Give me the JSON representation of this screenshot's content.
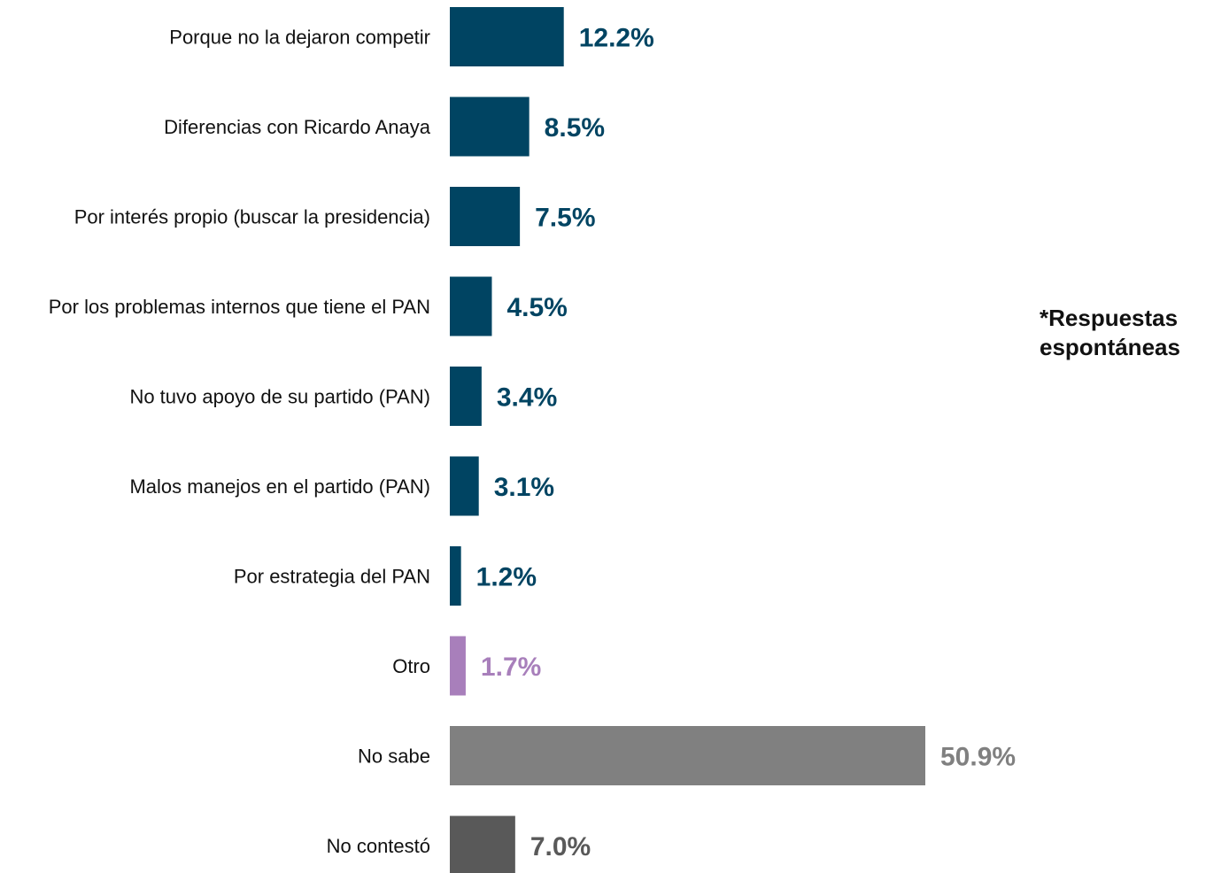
{
  "chart_data": {
    "type": "bar",
    "orientation": "horizontal",
    "categories": [
      "Porque no la dejaron competir",
      "Diferencias con Ricardo Anaya",
      "Por interés propio (buscar la presidencia)",
      "Por los problemas internos que tiene el PAN",
      "No tuvo apoyo de su partido (PAN)",
      "Malos manejos en el partido (PAN)",
      "Por estrategia del PAN",
      "Otro",
      "No sabe",
      "No contestó"
    ],
    "values": [
      12.2,
      8.5,
      7.5,
      4.5,
      3.4,
      3.1,
      1.2,
      1.7,
      50.9,
      7.0
    ],
    "value_labels": [
      "12.2%",
      "8.5%",
      "7.5%",
      "4.5%",
      "3.4%",
      "3.1%",
      "1.2%",
      "1.7%",
      "50.9%",
      "7.0%"
    ],
    "colors": [
      "#004462",
      "#004462",
      "#004462",
      "#004462",
      "#004462",
      "#004462",
      "#004462",
      "#a87fbb",
      "#808080",
      "#595959"
    ],
    "label_colors": [
      "#004462",
      "#004462",
      "#004462",
      "#004462",
      "#004462",
      "#004462",
      "#004462",
      "#a87fbb",
      "#808080",
      "#595959"
    ],
    "xlim": [
      0,
      50.9
    ],
    "grid": false,
    "legend": "none"
  },
  "note": "*Respuestas espontáneas"
}
